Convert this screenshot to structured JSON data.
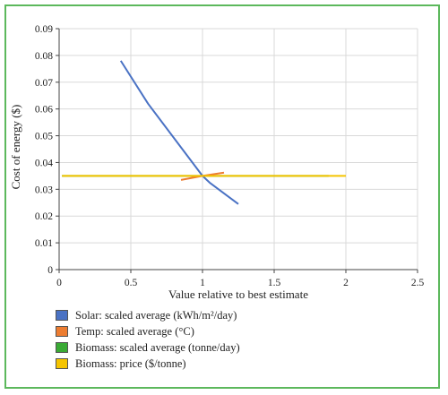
{
  "chart_data": {
    "type": "line",
    "title": "",
    "xlabel": "Value relative to best estimate",
    "ylabel": "Cost of energy ($)",
    "xlim": [
      0,
      2.5
    ],
    "ylim": [
      0,
      0.09
    ],
    "xticks": [
      "0",
      "0.5",
      "1",
      "1.5",
      "2",
      "2.5"
    ],
    "yticks": [
      "0",
      "0.01",
      "0.02",
      "0.03",
      "0.04",
      "0.05",
      "0.06",
      "0.07",
      "0.08",
      "0.09"
    ],
    "grid": true,
    "legend_position": "bottom-left",
    "series": [
      {
        "name": "Solar: scaled average (kWh/m²/day)",
        "color": "#4a72c4",
        "x": [
          0.43,
          0.62,
          1.0,
          1.05,
          1.25
        ],
        "y": [
          0.078,
          0.062,
          0.035,
          0.0325,
          0.0245
        ]
      },
      {
        "name": "Temp: scaled average (°C)",
        "color": "#ed7d31",
        "x": [
          0.85,
          1.0,
          1.15
        ],
        "y": [
          0.0335,
          0.035,
          0.0362
        ]
      },
      {
        "name": "Biomass: scaled average (tonne/day)",
        "color": "#3aaa35",
        "x": [
          0.02,
          1.88
        ],
        "y": [
          0.035,
          0.035
        ]
      },
      {
        "name": "Biomass: price ($/tonne)",
        "color": "#f5c400",
        "x": [
          0.02,
          2.0
        ],
        "y": [
          0.035,
          0.035
        ]
      }
    ]
  }
}
